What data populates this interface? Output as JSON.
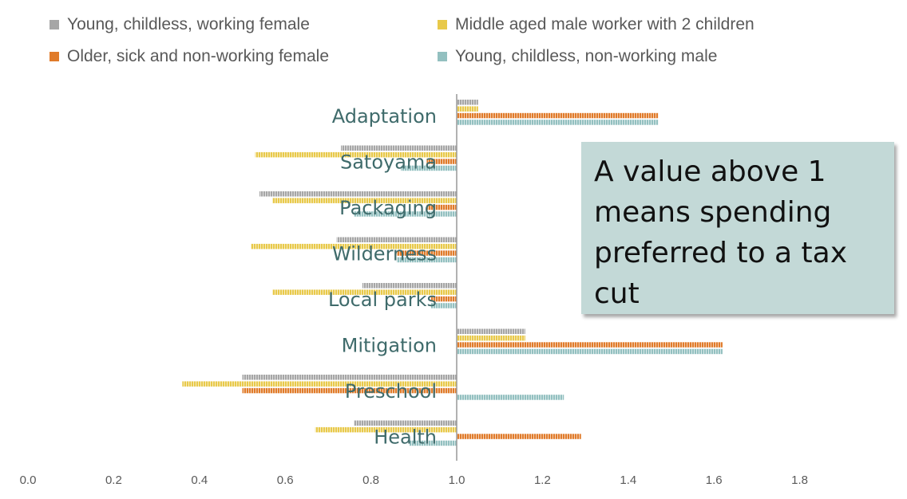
{
  "chart_data": {
    "type": "bar",
    "orientation": "horizontal",
    "categories": [
      "Adaptation",
      "Satoyama",
      "Packaging",
      "Wilderness",
      "Local parks",
      "Mitigation",
      "Preschool",
      "Health"
    ],
    "series": [
      {
        "name": "Young, childless, working female",
        "color": "#a6a6a6",
        "values": [
          1.05,
          0.73,
          0.54,
          0.72,
          0.78,
          1.16,
          0.5,
          0.76
        ]
      },
      {
        "name": "Middle aged male worker with 2 children",
        "color": "#e8c94a",
        "values": [
          1.05,
          0.53,
          0.57,
          0.52,
          0.57,
          1.16,
          0.36,
          0.67
        ]
      },
      {
        "name": "Older, sick and non-working female",
        "color": "#e07b2a",
        "values": [
          1.47,
          0.93,
          0.93,
          0.86,
          0.94,
          1.62,
          0.5,
          1.29
        ]
      },
      {
        "name": "Young, childless, non-working male",
        "color": "#93c0c0",
        "values": [
          1.47,
          0.87,
          0.76,
          0.86,
          0.94,
          1.62,
          1.25,
          0.89
        ]
      }
    ],
    "xlim": [
      0.0,
      2.0
    ],
    "xticks": [
      "0.0",
      "0.2",
      "0.4",
      "0.6",
      "0.8",
      "1.0",
      "1.2",
      "1.4",
      "1.6",
      "1.8"
    ],
    "baseline": 1.0,
    "legend_position": "top",
    "grid": false
  },
  "callout": {
    "line1": "A value above 1",
    "line2": "means spending",
    "line3": "preferred to a tax cut"
  }
}
